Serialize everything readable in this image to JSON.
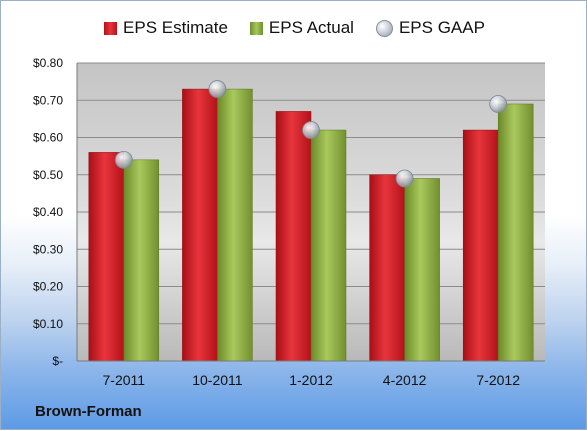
{
  "chart_data": {
    "type": "bar",
    "categories": [
      "7-2011",
      "10-2011",
      "1-2012",
      "4-2012",
      "7-2012"
    ],
    "series": [
      {
        "name": "EPS Estimate",
        "values": [
          0.56,
          0.73,
          0.67,
          0.5,
          0.62
        ]
      },
      {
        "name": "EPS Actual",
        "values": [
          0.54,
          0.73,
          0.62,
          0.49,
          0.69
        ]
      },
      {
        "name": "EPS GAAP",
        "values": [
          0.54,
          0.73,
          0.62,
          0.49,
          0.69
        ],
        "marker": "sphere"
      }
    ],
    "y_ticks": [
      "$-",
      "$0.10",
      "$0.20",
      "$0.30",
      "$0.40",
      "$0.50",
      "$0.60",
      "$0.70",
      "$0.80"
    ],
    "ylim": [
      0,
      0.8
    ],
    "legend_position": "top",
    "grid": true,
    "colors": {
      "estimate": "#d4222a",
      "actual": "#8fb043",
      "gaap": "#c9ced6"
    }
  },
  "company": "Brown-Forman",
  "legend": {
    "estimate": "EPS Estimate",
    "actual": "EPS Actual",
    "gaap": "EPS GAAP"
  }
}
